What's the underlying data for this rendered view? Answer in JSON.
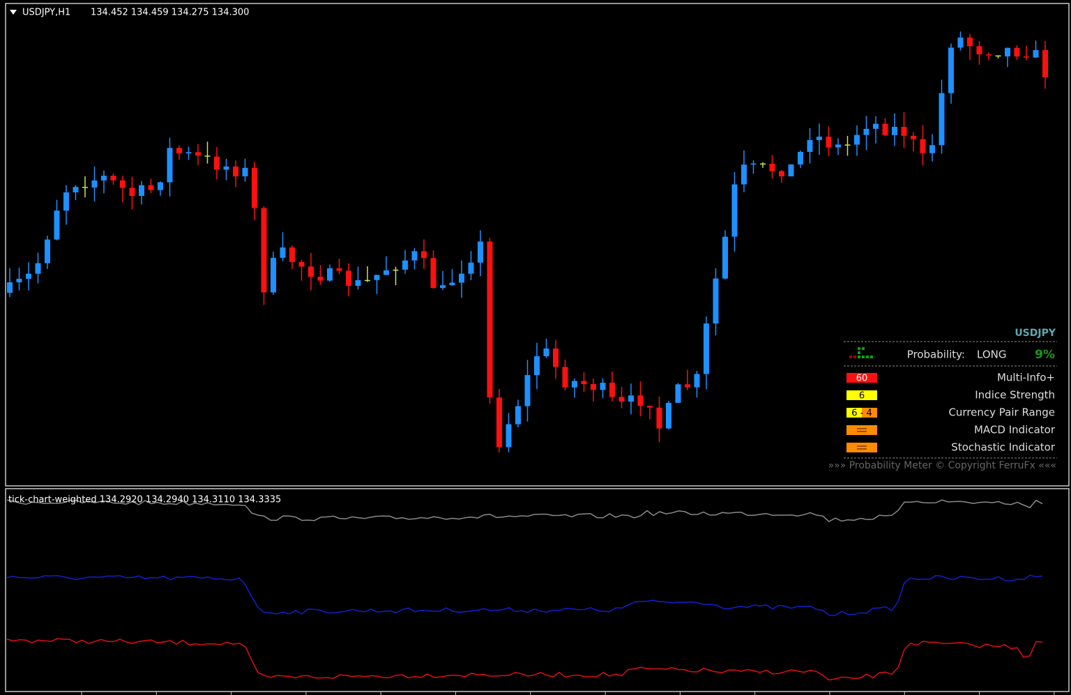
{
  "header": {
    "symbol": "USDJPY,H1",
    "ohlc": "134.452 134.459 134.275 134.300"
  },
  "panel": {
    "pair": "USDJPY",
    "probability_label": "Probability:",
    "direction": "LONG",
    "probability": "9%",
    "rows": [
      {
        "badge": "60",
        "label": "Multi-Info+"
      },
      {
        "badge": "6",
        "label": "Indice Strength"
      },
      {
        "badge": "6 - 4",
        "label": "Currency Pair Range"
      },
      {
        "label": "MACD Indicator"
      },
      {
        "label": "Stochastic Indicator"
      }
    ],
    "footer": "»»» Probability Meter © Copyright FerruFx «««"
  },
  "indicator": {
    "label": "tick-chart-weighted 134.2920 134.2940 134.3110 134.3335"
  }
}
